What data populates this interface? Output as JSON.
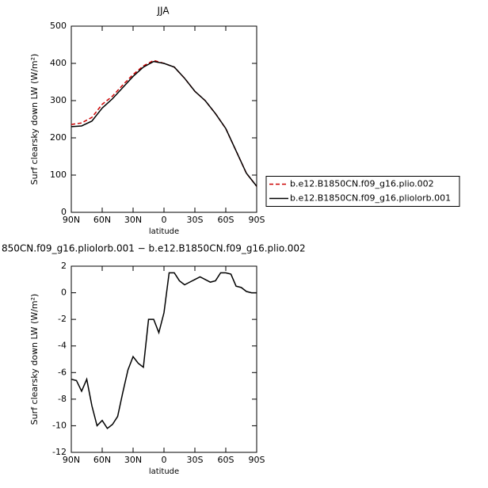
{
  "chart_data": [
    {
      "type": "line",
      "title": "JJA",
      "xlabel": "latitude",
      "ylabel": "Surf clearsky down LW (W/m²)",
      "x": [
        90,
        80,
        70,
        60,
        50,
        40,
        30,
        20,
        10,
        0,
        -10,
        -20,
        -30,
        -40,
        -50,
        -60,
        -70,
        -80,
        -90
      ],
      "xlim": [
        90,
        -90
      ],
      "xticks": [
        {
          "value": 90,
          "label": "90N"
        },
        {
          "value": 60,
          "label": "60N"
        },
        {
          "value": 30,
          "label": "30N"
        },
        0,
        {
          "value": -30,
          "label": "30S"
        },
        {
          "value": -60,
          "label": "60S"
        },
        {
          "value": -90,
          "label": "90S"
        }
      ],
      "ylim": [
        0,
        500
      ],
      "yticks": [
        0,
        100,
        200,
        300,
        400,
        500
      ],
      "legend": "right",
      "series": [
        {
          "name": "b.e12.B1850CN.f09_g16.plio.002",
          "color": "#cc0000",
          "linestyle": "dashed",
          "values": [
            236,
            240,
            255,
            290,
            312,
            342,
            370,
            393,
            408,
            400,
            390,
            360,
            325,
            300,
            265,
            225,
            165,
            105,
            70
          ]
        },
        {
          "name": "b.e12.B1850CN.f09_g16.pliolorb.001",
          "color": "#000000",
          "linestyle": "solid",
          "values": [
            230,
            232,
            245,
            280,
            305,
            335,
            365,
            390,
            405,
            400,
            390,
            360,
            325,
            300,
            265,
            225,
            165,
            105,
            70
          ]
        }
      ]
    },
    {
      "type": "line",
      "title": "850CN.f09_g16.pliolorb.001 − b.e12.B1850CN.f09_g16.plio.002",
      "xlabel": "latitude",
      "ylabel": "Surf clearsky down LW (W/m²)",
      "x": [
        90,
        85,
        80,
        75,
        70,
        65,
        60,
        55,
        50,
        45,
        40,
        35,
        30,
        25,
        20,
        15,
        10,
        5,
        0,
        -5,
        -10,
        -15,
        -20,
        -25,
        -30,
        -35,
        -40,
        -45,
        -50,
        -55,
        -60,
        -65,
        -70,
        -75,
        -80,
        -85,
        -90
      ],
      "xlim": [
        90,
        -90
      ],
      "xticks": [
        {
          "value": 90,
          "label": "90N"
        },
        {
          "value": 60,
          "label": "60N"
        },
        {
          "value": 30,
          "label": "30N"
        },
        0,
        {
          "value": -30,
          "label": "30S"
        },
        {
          "value": -60,
          "label": "60S"
        },
        {
          "value": -90,
          "label": "90S"
        }
      ],
      "ylim": [
        -12,
        2
      ],
      "yticks": [
        -12,
        -10,
        -8,
        -6,
        -4,
        -2,
        0,
        2
      ],
      "series": [
        {
          "color": "#000000",
          "linestyle": "solid",
          "values": [
            -6.5,
            -6.6,
            -7.4,
            -6.5,
            -8.5,
            -10.0,
            -9.6,
            -10.2,
            -9.9,
            -9.3,
            -7.5,
            -5.8,
            -4.8,
            -5.3,
            -5.6,
            -2.0,
            -2.0,
            -3.0,
            -1.5,
            1.5,
            1.5,
            0.9,
            0.6,
            0.8,
            1.0,
            1.2,
            1.0,
            0.8,
            0.9,
            1.5,
            1.5,
            1.4,
            0.5,
            0.4,
            0.1,
            0.0,
            0.0
          ]
        }
      ]
    }
  ]
}
